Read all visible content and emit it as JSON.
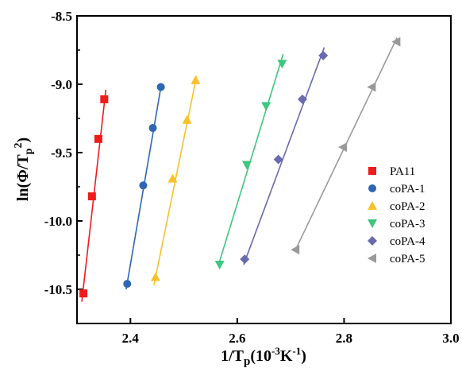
{
  "chart_data": {
    "type": "scatter",
    "xlabel": {
      "main": "1/T",
      "sub": "p",
      "unit": "(10",
      "unit_sup": "-3",
      "unit_tail": "K",
      "unit_tail_sup": "-1",
      "close": ")"
    },
    "ylabel": {
      "main": "ln(Φ/T",
      "sub": "p",
      "sup": "2",
      "close": ")"
    },
    "xlim": [
      2.3,
      3.0
    ],
    "ylim": [
      -10.75,
      -8.5
    ],
    "x_ticks": [
      "2.4",
      "2.6",
      "2.8",
      "3.0"
    ],
    "y_ticks": [
      "-8.5",
      "-9.0",
      "-9.5",
      "-10.0",
      "-10.5"
    ],
    "legend_position": "right",
    "grid": false,
    "series": [
      {
        "name": "PA11",
        "color": "#ee1c1c",
        "marker": "square",
        "x": [
          2.312,
          2.328,
          2.34,
          2.351
        ],
        "y": [
          -10.53,
          -9.82,
          -9.4,
          -9.11
        ],
        "fit": [
          [
            2.309,
            -10.59
          ],
          [
            2.354,
            -9.04
          ]
        ]
      },
      {
        "name": "coPA-1",
        "color": "#2e66b3",
        "marker": "circle",
        "x": [
          2.394,
          2.424,
          2.442,
          2.457
        ],
        "y": [
          -10.46,
          -9.74,
          -9.32,
          -9.02
        ],
        "fit": [
          [
            2.392,
            -10.5
          ],
          [
            2.458,
            -9.0
          ]
        ]
      },
      {
        "name": "coPA-2",
        "color": "#f9c12a",
        "marker": "triangle-up",
        "x": [
          2.447,
          2.479,
          2.506,
          2.522
        ],
        "y": [
          -10.41,
          -9.69,
          -9.26,
          -8.97
        ],
        "fit": [
          [
            2.444,
            -10.47
          ],
          [
            2.524,
            -8.94
          ]
        ]
      },
      {
        "name": "coPA-3",
        "color": "#3ec77e",
        "marker": "triangle-down",
        "x": [
          2.567,
          2.618,
          2.654,
          2.684
        ],
        "y": [
          -10.32,
          -9.59,
          -9.16,
          -8.85
        ],
        "fit": [
          [
            2.565,
            -10.32
          ],
          [
            2.686,
            -8.78
          ]
        ]
      },
      {
        "name": "coPA-4",
        "color": "#6a6ab0",
        "marker": "diamond",
        "x": [
          2.614,
          2.677,
          2.722,
          2.761
        ],
        "y": [
          -10.28,
          -9.55,
          -9.11,
          -8.79
        ],
        "fit": [
          [
            2.612,
            -10.32
          ],
          [
            2.763,
            -8.73
          ]
        ]
      },
      {
        "name": "coPA-5",
        "color": "#9a9a9a",
        "marker": "triangle-left",
        "x": [
          2.709,
          2.798,
          2.852,
          2.898
        ],
        "y": [
          -10.21,
          -9.46,
          -9.02,
          -8.69
        ],
        "fit": [
          [
            2.708,
            -10.22
          ],
          [
            2.899,
            -8.66
          ]
        ]
      }
    ]
  }
}
